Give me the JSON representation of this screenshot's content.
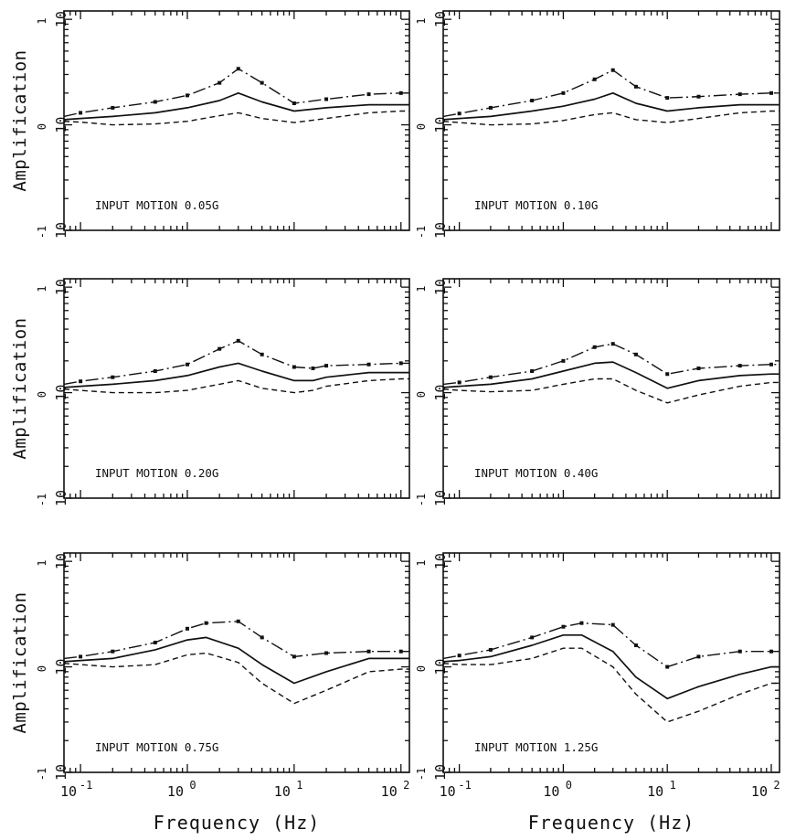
{
  "chart_data": [
    {
      "type": "line",
      "annotation": "INPUT MOTION 0.05G",
      "ylabel": "Amplification",
      "xlabel": "",
      "xscale": "log",
      "yscale": "log",
      "xlim": [
        0.07,
        120
      ],
      "ylim": [
        0.1,
        12
      ],
      "x": [
        0.07,
        0.1,
        0.2,
        0.5,
        1.0,
        2.0,
        3.0,
        5.0,
        10,
        20,
        50,
        100,
        120
      ],
      "series": [
        {
          "name": "",
          "style": "dash-dot",
          "values": [
            1.2,
            1.3,
            1.45,
            1.65,
            1.9,
            2.5,
            3.4,
            2.5,
            1.6,
            1.75,
            1.95,
            2.0,
            2.0
          ]
        },
        {
          "name": "",
          "style": "solid",
          "values": [
            1.12,
            1.15,
            1.2,
            1.3,
            1.45,
            1.7,
            2.0,
            1.65,
            1.35,
            1.45,
            1.55,
            1.55,
            1.55
          ]
        },
        {
          "name": "",
          "style": "dashed",
          "values": [
            1.08,
            1.06,
            1.0,
            1.02,
            1.08,
            1.22,
            1.3,
            1.15,
            1.05,
            1.15,
            1.3,
            1.35,
            1.35
          ]
        }
      ]
    },
    {
      "type": "line",
      "annotation": "INPUT MOTION 0.10G",
      "ylabel": "",
      "xlabel": "",
      "xscale": "log",
      "yscale": "log",
      "xlim": [
        0.07,
        120
      ],
      "ylim": [
        0.1,
        12
      ],
      "x": [
        0.07,
        0.1,
        0.2,
        0.5,
        1.0,
        2.0,
        3.0,
        5.0,
        10,
        20,
        50,
        100,
        120
      ],
      "series": [
        {
          "name": "",
          "style": "dash-dot",
          "values": [
            1.2,
            1.28,
            1.45,
            1.7,
            2.0,
            2.7,
            3.3,
            2.3,
            1.8,
            1.85,
            1.95,
            2.0,
            2.0
          ]
        },
        {
          "name": "",
          "style": "solid",
          "values": [
            1.12,
            1.15,
            1.2,
            1.35,
            1.5,
            1.75,
            2.0,
            1.6,
            1.35,
            1.45,
            1.55,
            1.55,
            1.55
          ]
        },
        {
          "name": "",
          "style": "dashed",
          "values": [
            1.08,
            1.05,
            1.0,
            1.02,
            1.1,
            1.25,
            1.3,
            1.12,
            1.05,
            1.15,
            1.3,
            1.35,
            1.35
          ]
        }
      ]
    },
    {
      "type": "line",
      "annotation": "INPUT MOTION 0.20G",
      "ylabel": "Amplification",
      "xlabel": "",
      "xscale": "log",
      "yscale": "log",
      "xlim": [
        0.07,
        120
      ],
      "ylim": [
        0.1,
        12
      ],
      "x": [
        0.07,
        0.1,
        0.2,
        0.5,
        1.0,
        2.0,
        3.0,
        5.0,
        10,
        15,
        20,
        50,
        100,
        120
      ],
      "series": [
        {
          "name": "",
          "style": "dash-dot",
          "values": [
            1.2,
            1.28,
            1.4,
            1.6,
            1.85,
            2.6,
            3.1,
            2.3,
            1.75,
            1.7,
            1.8,
            1.85,
            1.9,
            1.9
          ]
        },
        {
          "name": "",
          "style": "solid",
          "values": [
            1.12,
            1.15,
            1.2,
            1.3,
            1.45,
            1.75,
            1.9,
            1.6,
            1.3,
            1.3,
            1.4,
            1.55,
            1.55,
            1.55
          ]
        },
        {
          "name": "",
          "style": "dashed",
          "values": [
            1.08,
            1.05,
            1.0,
            1.0,
            1.05,
            1.2,
            1.3,
            1.1,
            1.0,
            1.05,
            1.15,
            1.3,
            1.35,
            1.35
          ]
        }
      ]
    },
    {
      "type": "line",
      "annotation": "INPUT MOTION 0.40G",
      "ylabel": "",
      "xlabel": "",
      "xscale": "log",
      "yscale": "log",
      "xlim": [
        0.07,
        120
      ],
      "ylim": [
        0.1,
        12
      ],
      "x": [
        0.07,
        0.1,
        0.2,
        0.5,
        1.0,
        2.0,
        3.0,
        5.0,
        10,
        20,
        50,
        100,
        120
      ],
      "series": [
        {
          "name": "",
          "style": "dash-dot",
          "values": [
            1.2,
            1.25,
            1.4,
            1.6,
            2.0,
            2.7,
            2.9,
            2.3,
            1.5,
            1.7,
            1.8,
            1.85,
            1.85
          ]
        },
        {
          "name": "",
          "style": "solid",
          "values": [
            1.12,
            1.15,
            1.2,
            1.35,
            1.6,
            1.9,
            1.95,
            1.55,
            1.1,
            1.3,
            1.45,
            1.5,
            1.5
          ]
        },
        {
          "name": "",
          "style": "dashed",
          "values": [
            1.08,
            1.05,
            1.02,
            1.05,
            1.2,
            1.35,
            1.35,
            1.05,
            0.8,
            0.95,
            1.15,
            1.25,
            1.25
          ]
        }
      ]
    },
    {
      "type": "line",
      "annotation": "INPUT MOTION 0.75G",
      "ylabel": "Amplification",
      "xlabel": "Frequency (Hz)",
      "xscale": "log",
      "yscale": "log",
      "xlim": [
        0.07,
        120
      ],
      "ylim": [
        0.1,
        12
      ],
      "x": [
        0.07,
        0.1,
        0.2,
        0.5,
        1.0,
        1.5,
        3.0,
        5.0,
        10,
        20,
        50,
        100,
        120
      ],
      "series": [
        {
          "name": "",
          "style": "dash-dot",
          "values": [
            1.2,
            1.25,
            1.4,
            1.7,
            2.3,
            2.6,
            2.7,
            1.9,
            1.25,
            1.35,
            1.4,
            1.4,
            1.4
          ]
        },
        {
          "name": "",
          "style": "solid",
          "values": [
            1.12,
            1.15,
            1.2,
            1.45,
            1.8,
            1.9,
            1.5,
            1.05,
            0.7,
            0.9,
            1.2,
            1.2,
            1.2
          ]
        },
        {
          "name": "",
          "style": "dashed",
          "values": [
            1.08,
            1.05,
            1.0,
            1.05,
            1.3,
            1.35,
            1.1,
            0.7,
            0.45,
            0.6,
            0.9,
            0.95,
            0.95
          ]
        }
      ]
    },
    {
      "type": "line",
      "annotation": "INPUT MOTION 1.25G",
      "ylabel": "",
      "xlabel": "Frequency (Hz)",
      "xscale": "log",
      "yscale": "log",
      "xlim": [
        0.07,
        120
      ],
      "ylim": [
        0.1,
        12
      ],
      "x": [
        0.07,
        0.1,
        0.2,
        0.5,
        1.0,
        1.5,
        3.0,
        5.0,
        10,
        20,
        50,
        100,
        120
      ],
      "series": [
        {
          "name": "",
          "style": "dash-dot",
          "values": [
            1.2,
            1.28,
            1.45,
            1.9,
            2.4,
            2.6,
            2.5,
            1.6,
            1.0,
            1.25,
            1.4,
            1.4,
            1.4
          ]
        },
        {
          "name": "",
          "style": "solid",
          "values": [
            1.12,
            1.15,
            1.25,
            1.6,
            2.0,
            2.0,
            1.4,
            0.8,
            0.5,
            0.65,
            0.85,
            1.0,
            1.0
          ]
        },
        {
          "name": "",
          "style": "dashed",
          "values": [
            1.08,
            1.05,
            1.05,
            1.2,
            1.5,
            1.5,
            1.0,
            0.55,
            0.3,
            0.38,
            0.55,
            0.7,
            0.7
          ]
        }
      ]
    }
  ]
}
